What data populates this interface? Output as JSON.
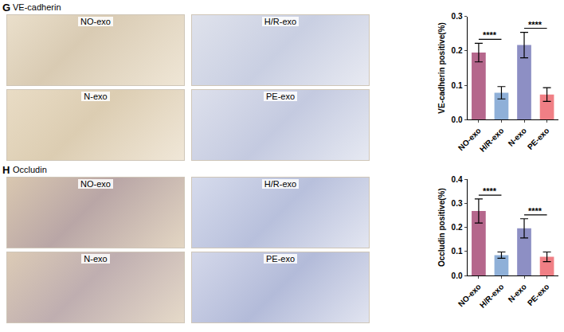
{
  "chart_data": [
    {
      "type": "bar",
      "panel_label": "G",
      "image_title": "VE-cadherin",
      "image_labels": [
        "NO-exo",
        "H/R-exo",
        "N-exo",
        "PE-exo"
      ],
      "categories": [
        "NO-exo",
        "H/R-exo",
        "N-exo",
        "PE-exo"
      ],
      "values": [
        0.195,
        0.078,
        0.217,
        0.073
      ],
      "errors": [
        0.027,
        0.018,
        0.037,
        0.02
      ],
      "colors": [
        "#b5678c",
        "#8fb0d8",
        "#8d8fc4",
        "#f07f85"
      ],
      "y_label": "VE-cadherin positive(%)",
      "ylim": [
        0,
        0.3
      ],
      "yticks": [
        {
          "value": 0,
          "label": "0.0"
        },
        0.1,
        0.2,
        0.3
      ],
      "grid": false,
      "annotations": [
        {
          "text": "****",
          "from": "NO-exo",
          "to": "H/R-exo"
        },
        {
          "text": "****",
          "from": "N-exo",
          "to": "PE-exo"
        }
      ]
    },
    {
      "type": "bar",
      "panel_label": "H",
      "image_title": "Occludin",
      "image_labels": [
        "NO-exo",
        "H/R-exo",
        "N-exo",
        "PE-exo"
      ],
      "categories": [
        "NO-exo",
        "H/R-exo",
        "N-exo",
        "PE-exo"
      ],
      "values": [
        0.268,
        0.085,
        0.196,
        0.078
      ],
      "errors": [
        0.05,
        0.013,
        0.04,
        0.02
      ],
      "colors": [
        "#b5678c",
        "#8fb0d8",
        "#8d8fc4",
        "#f07f85"
      ],
      "y_label": "Occludin positive(%)",
      "ylim": [
        0,
        0.4
      ],
      "yticks": [
        {
          "value": 0,
          "label": "0.0"
        },
        0.1,
        0.2,
        0.3,
        0.4
      ],
      "grid": false,
      "annotations": [
        {
          "text": "****",
          "from": "NO-exo",
          "to": "H/R-exo"
        },
        {
          "text": "****",
          "from": "N-exo",
          "to": "PE-exo"
        }
      ]
    }
  ]
}
